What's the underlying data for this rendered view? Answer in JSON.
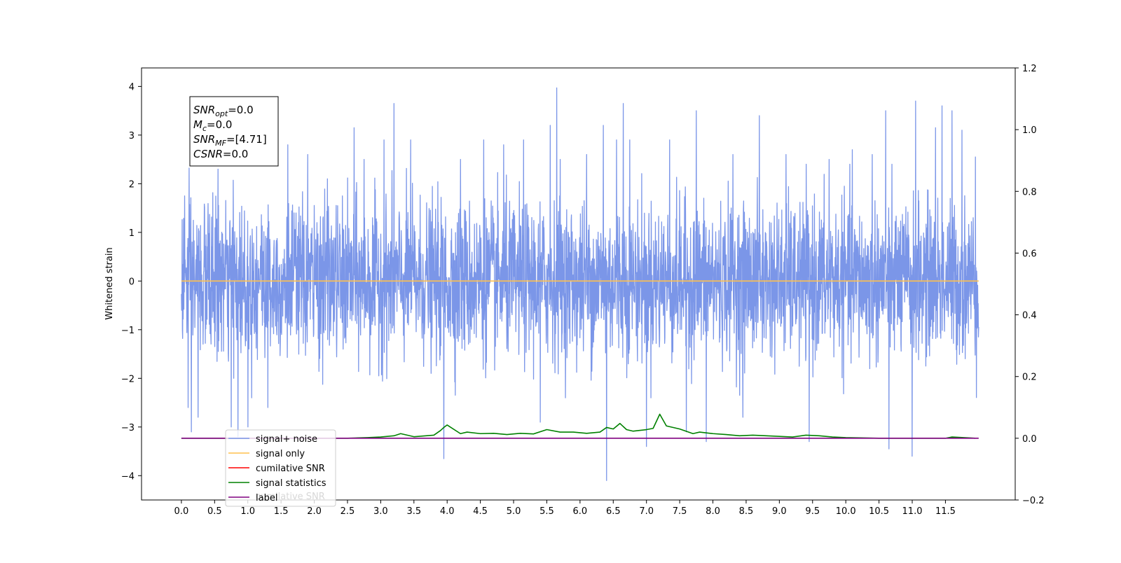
{
  "chart_data": {
    "type": "line",
    "title": "",
    "xlabel": "",
    "ylabel": "Whitened strain",
    "xlim": [
      -0.6,
      12.55
    ],
    "ylim": [
      -4.5,
      4.38
    ],
    "y2lim": [
      -0.2,
      1.2
    ],
    "x_ticks": [
      "0.0",
      "0.5",
      "1.0",
      "1.5",
      "2.0",
      "2.5",
      "3.0",
      "3.5",
      "4.0",
      "4.5",
      "5.0",
      "5.5",
      "6.0",
      "6.5",
      "7.0",
      "7.5",
      "8.0",
      "8.5",
      "9.0",
      "9.5",
      "10.0",
      "10.5",
      "11.0",
      "11.5"
    ],
    "y_ticks": [
      "4",
      "3",
      "2",
      "1",
      "0",
      "−1",
      "−2",
      "−3",
      "−4"
    ],
    "y2_ticks": [
      "1.2",
      "1.0",
      "0.8",
      "0.6",
      "0.4",
      "0.2",
      "0.0",
      "−0.2"
    ],
    "info_box": [
      {
        "base": "SNR",
        "sub": "opt",
        "value": "=0.0"
      },
      {
        "base": "M",
        "sub": "c",
        "value": "=0.0"
      },
      {
        "base": "SNR",
        "sub": "MF",
        "value": "=[4.71]"
      },
      {
        "base": "CSNR",
        "sub": "",
        "value": "=0.0"
      }
    ],
    "legend": {
      "placement": "lower-left",
      "entries": [
        {
          "label": "signal+ noise",
          "color": "#7b96e8"
        },
        {
          "label": "signal only",
          "color": "#ffc04d"
        },
        {
          "label": "cumilative SNR",
          "color": "#ff0000"
        },
        {
          "label": "signal statistics",
          "color": "#008000"
        },
        {
          "label": "label",
          "color": "#800080"
        }
      ],
      "ghost_text": "cumilative SNR"
    },
    "series": [
      {
        "label": "signal+ noise",
        "axis": "left",
        "color": "#7b96e8",
        "x_range": [
          0.0,
          12.0
        ],
        "noise_std": 0.78,
        "peaks": [
          {
            "x": 0.05,
            "y": 1.75
          },
          {
            "x": 0.1,
            "y": 2.4
          },
          {
            "x": 0.1,
            "y": -2.6
          },
          {
            "x": 0.15,
            "y": -3.1
          },
          {
            "x": 0.25,
            "y": -2.8
          },
          {
            "x": 0.55,
            "y": 2.3
          },
          {
            "x": 0.75,
            "y": -3.0
          },
          {
            "x": 0.85,
            "y": -3.2
          },
          {
            "x": 1.0,
            "y": -3.0
          },
          {
            "x": 1.3,
            "y": -2.6
          },
          {
            "x": 1.6,
            "y": 2.8
          },
          {
            "x": 1.9,
            "y": 2.6
          },
          {
            "x": 2.2,
            "y": 2.1
          },
          {
            "x": 2.6,
            "y": 3.15
          },
          {
            "x": 2.75,
            "y": 2.5
          },
          {
            "x": 3.05,
            "y": 2.9
          },
          {
            "x": 3.2,
            "y": 3.65
          },
          {
            "x": 3.45,
            "y": 2.9
          },
          {
            "x": 3.95,
            "y": -3.65
          },
          {
            "x": 4.2,
            "y": 2.5
          },
          {
            "x": 4.55,
            "y": 2.9
          },
          {
            "x": 4.85,
            "y": 2.8
          },
          {
            "x": 5.15,
            "y": 2.9
          },
          {
            "x": 5.4,
            "y": -2.9
          },
          {
            "x": 5.55,
            "y": 3.2
          },
          {
            "x": 5.65,
            "y": 3.97
          },
          {
            "x": 5.7,
            "y": 2.5
          },
          {
            "x": 6.1,
            "y": 2.6
          },
          {
            "x": 6.35,
            "y": 3.2
          },
          {
            "x": 6.4,
            "y": -4.1
          },
          {
            "x": 6.55,
            "y": 2.9
          },
          {
            "x": 6.65,
            "y": 3.65
          },
          {
            "x": 6.75,
            "y": 2.9
          },
          {
            "x": 7.0,
            "y": -3.4
          },
          {
            "x": 7.35,
            "y": 2.9
          },
          {
            "x": 7.6,
            "y": -3.1
          },
          {
            "x": 7.75,
            "y": 3.5
          },
          {
            "x": 7.9,
            "y": -3.3
          },
          {
            "x": 8.3,
            "y": 2.6
          },
          {
            "x": 8.45,
            "y": -2.8
          },
          {
            "x": 8.7,
            "y": 3.4
          },
          {
            "x": 9.1,
            "y": 2.6
          },
          {
            "x": 9.45,
            "y": -3.3
          },
          {
            "x": 9.75,
            "y": 2.5
          },
          {
            "x": 10.1,
            "y": 2.7
          },
          {
            "x": 10.4,
            "y": 2.6
          },
          {
            "x": 10.6,
            "y": 3.5
          },
          {
            "x": 10.65,
            "y": -3.45
          },
          {
            "x": 11.0,
            "y": -3.6
          },
          {
            "x": 11.05,
            "y": 3.7
          },
          {
            "x": 11.35,
            "y": 3.15
          },
          {
            "x": 11.45,
            "y": 3.6
          },
          {
            "x": 11.6,
            "y": 3.5
          },
          {
            "x": 11.75,
            "y": 3.1
          },
          {
            "x": 11.95,
            "y": 2.55
          }
        ]
      },
      {
        "label": "signal only",
        "axis": "left",
        "color": "#ffc04d",
        "x": [
          0.0,
          12.0
        ],
        "y": [
          0.0,
          0.0
        ]
      },
      {
        "label": "signal statistics",
        "axis": "right",
        "color": "#008000",
        "x": [
          0.0,
          2.5,
          2.8,
          3.0,
          3.2,
          3.3,
          3.5,
          3.8,
          3.9,
          3.95,
          4.0,
          4.2,
          4.3,
          4.5,
          4.7,
          4.9,
          5.1,
          5.3,
          5.5,
          5.7,
          5.9,
          6.1,
          6.3,
          6.4,
          6.5,
          6.6,
          6.7,
          6.8,
          7.0,
          7.1,
          7.2,
          7.3,
          7.5,
          7.7,
          7.8,
          8.0,
          8.2,
          8.4,
          8.6,
          8.8,
          9.0,
          9.2,
          9.4,
          9.6,
          9.8,
          10.0,
          10.5,
          11.0,
          11.5,
          11.6,
          11.95
        ],
        "y": [
          0.0,
          0.0,
          0.002,
          0.004,
          0.008,
          0.015,
          0.005,
          0.01,
          0.025,
          0.035,
          0.043,
          0.015,
          0.02,
          0.015,
          0.016,
          0.012,
          0.016,
          0.014,
          0.028,
          0.02,
          0.02,
          0.016,
          0.02,
          0.035,
          0.03,
          0.048,
          0.028,
          0.023,
          0.028,
          0.032,
          0.078,
          0.04,
          0.03,
          0.015,
          0.02,
          0.015,
          0.012,
          0.008,
          0.01,
          0.008,
          0.006,
          0.004,
          0.01,
          0.008,
          0.004,
          0.002,
          0.0,
          0.0,
          0.0,
          0.004,
          0.0
        ]
      },
      {
        "label": "label",
        "axis": "right",
        "color": "#800080",
        "x": [
          0.0,
          12.0
        ],
        "y": [
          0.0,
          0.0
        ]
      }
    ]
  }
}
